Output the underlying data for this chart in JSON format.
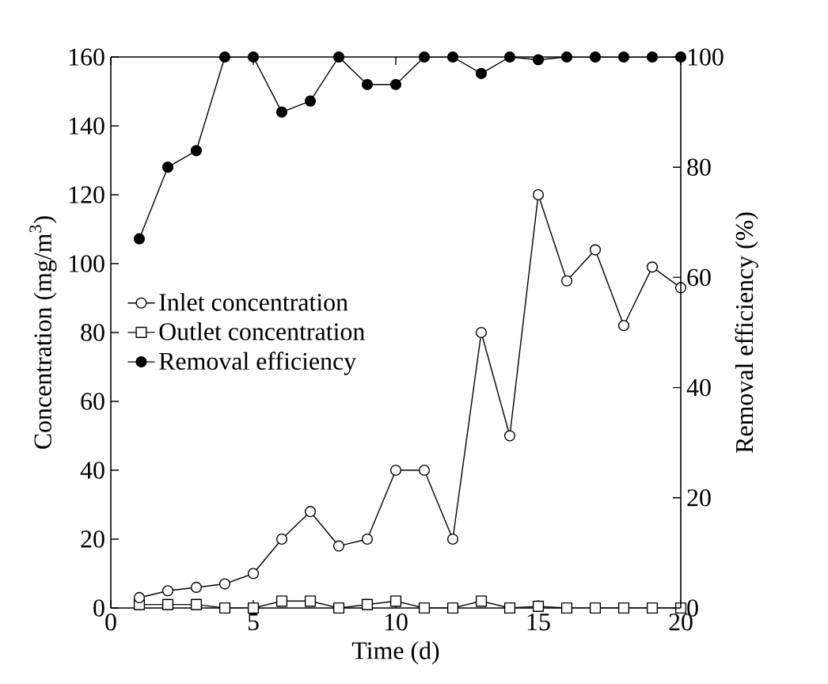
{
  "chart_data": {
    "type": "line",
    "xlabel": "Time (d)",
    "ylabel": "Concentration (mg/m$^{3}$)",
    "y2label": "Removal efficiency (%)",
    "x": [
      1,
      2,
      3,
      4,
      5,
      6,
      7,
      8,
      9,
      10,
      11,
      12,
      13,
      14,
      15,
      16,
      17,
      18,
      19,
      20
    ],
    "series": [
      {
        "name": "Inlet concentration",
        "color": "#000000",
        "marker": "circle",
        "values": [
          3,
          5,
          6,
          7,
          10,
          20,
          28,
          18,
          20,
          40,
          40,
          20,
          80,
          50,
          120,
          95,
          104,
          82,
          99,
          93
        ]
      },
      {
        "name": "Outlet concentration",
        "color": "#000000",
        "marker": "square",
        "values": [
          1,
          1,
          1,
          0,
          0,
          2,
          2,
          0,
          1,
          2,
          0,
          0,
          2,
          0,
          0.5,
          0,
          0,
          0,
          0,
          0
        ]
      },
      {
        "name": "Removal efficiency",
        "color": "#000000",
        "marker": "circle",
        "axis": "y2",
        "values": [
          67,
          80,
          83,
          100,
          100,
          90,
          92,
          100,
          95,
          95,
          100,
          100,
          97,
          100,
          99.5,
          100,
          100,
          100,
          100,
          100
        ]
      }
    ],
    "xlim": [
      0,
      20
    ],
    "xticks": [
      0,
      5,
      10,
      15,
      20
    ],
    "ylim": [
      0,
      160
    ],
    "yticks": [
      0,
      20,
      40,
      60,
      80,
      100,
      120,
      140,
      160
    ],
    "y2lim": [
      0,
      100
    ],
    "y2ticks": [
      0,
      20,
      40,
      60,
      80,
      100
    ],
    "legend": "left",
    "grid": false
  }
}
